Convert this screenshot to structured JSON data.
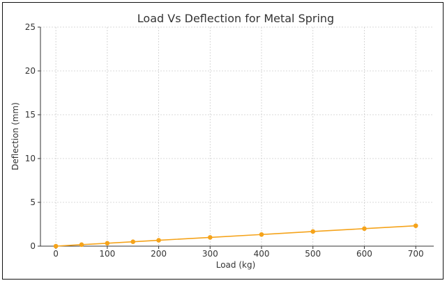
{
  "chart_data": {
    "type": "line",
    "title": "Load Vs Deflection for Metal Spring",
    "xlabel": "Load (kg)",
    "ylabel": "Deflection (mm)",
    "x": [
      0,
      50,
      100,
      150,
      200,
      300,
      400,
      500,
      600,
      700
    ],
    "series": [
      {
        "values": [
          0,
          0.17,
          0.33,
          0.5,
          0.67,
          1.0,
          1.33,
          1.67,
          2.0,
          2.33
        ],
        "color": "#f5a31a",
        "marker": "circle"
      }
    ],
    "xticks": [
      0,
      100,
      200,
      300,
      400,
      500,
      600,
      700
    ],
    "yticks": [
      0,
      5,
      10,
      15,
      20,
      25
    ],
    "xlim": [
      -30,
      735
    ],
    "ylim": [
      0,
      25
    ],
    "grid": true,
    "legend": "none"
  }
}
